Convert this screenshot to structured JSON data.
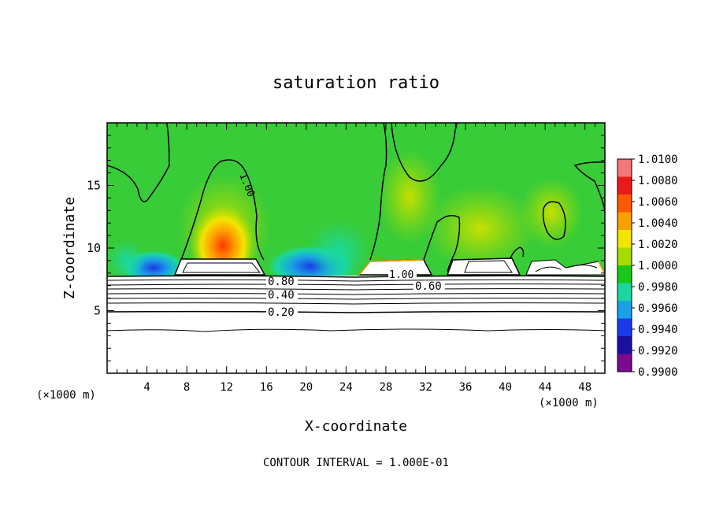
{
  "chart_data": {
    "type": "contour",
    "title": "saturation ratio",
    "xlabel": "X-coordinate",
    "ylabel": "Z-coordinate",
    "x_unit": "(×1000 m)",
    "x_unit_right": "(×1000 m)",
    "xlim": [
      0,
      50
    ],
    "ylim": [
      0,
      20
    ],
    "x_ticks": [
      4,
      8,
      12,
      16,
      20,
      24,
      28,
      32,
      36,
      40,
      44,
      48
    ],
    "y_ticks": [
      5,
      10,
      15
    ],
    "contour_labels": [
      "1.00",
      "1.00",
      "0.80",
      "0.60",
      "0.40",
      "0.20"
    ],
    "footer": "CONTOUR INTERVAL = 1.000E-01",
    "colorbar": {
      "levels": [
        "1.0100",
        "1.0080",
        "1.0060",
        "1.0040",
        "1.0020",
        "1.0000",
        "0.9980",
        "0.9960",
        "0.9940",
        "0.9920",
        "0.9900"
      ],
      "colors": [
        "#f07878",
        "#e81a1a",
        "#fb5a00",
        "#f7a000",
        "#f2e600",
        "#a8dc00",
        "#1ac81a",
        "#1ad8a0",
        "#1aa0e6",
        "#1a3ae6",
        "#1a10a0",
        "#7a0a90"
      ]
    },
    "colors": {
      "field_base": "#38cc38",
      "background": "#ffffff"
    }
  }
}
